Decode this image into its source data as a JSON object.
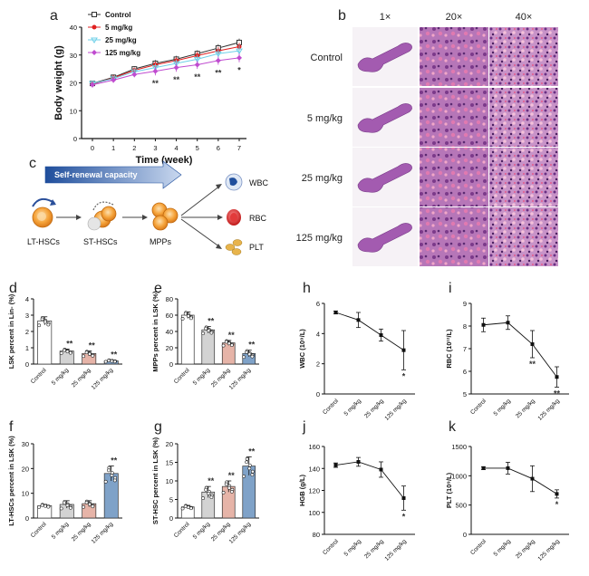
{
  "panels": {
    "a": {
      "letter": "a",
      "chart_data": {
        "type": "line",
        "xlabel": "Time (week)",
        "ylabel": "Body weight (g)",
        "x": [
          0,
          1,
          2,
          3,
          4,
          5,
          6,
          7
        ],
        "xticks": [
          "0",
          "1",
          "2",
          "3",
          "4",
          "5",
          "6",
          "7"
        ],
        "ylim": [
          0,
          40
        ],
        "yticks": [
          "0",
          "10",
          "20",
          "30",
          "40"
        ],
        "series": [
          {
            "name": "Control",
            "color": "#333333",
            "marker": "square",
            "values": [
              19.8,
              22.0,
              25.0,
              27.0,
              28.5,
              30.5,
              32.5,
              34.5
            ],
            "err": [
              1,
              1,
              1,
              1.2,
              1.2,
              1.2,
              1.4,
              1.4
            ]
          },
          {
            "name": "5 mg/kg",
            "color": "#e02020",
            "marker": "circle",
            "values": [
              19.5,
              21.8,
              24.5,
              26.5,
              28.0,
              29.8,
              31.5,
              33.0
            ],
            "err": [
              1,
              1,
              1,
              1.2,
              1.2,
              1.4,
              1.4,
              1.4
            ]
          },
          {
            "name": "25 mg/kg",
            "color": "#6fd0e8",
            "marker": "triangle-down",
            "values": [
              19.8,
              21.5,
              24.0,
              25.5,
              27.0,
              28.5,
              30.5,
              31.5
            ],
            "err": [
              1,
              1,
              1.2,
              1.4,
              1.4,
              1.6,
              1.8,
              2.2
            ]
          },
          {
            "name": "125 mg/kg",
            "color": "#c04cd0",
            "marker": "diamond",
            "values": [
              19.3,
              21.0,
              23.0,
              24.2,
              25.5,
              26.5,
              28.0,
              29.0
            ],
            "err": [
              1,
              1,
              1,
              1.5,
              1.5,
              1.5,
              1.5,
              1.6
            ]
          }
        ],
        "annotations": [
          {
            "x": 3,
            "text": "**"
          },
          {
            "x": 4,
            "text": "**"
          },
          {
            "x": 5,
            "text": "**"
          },
          {
            "x": 6,
            "text": "**"
          },
          {
            "x": 7,
            "text": "*"
          }
        ]
      }
    },
    "b": {
      "letter": "b",
      "columns": [
        "1×",
        "20×",
        "40×"
      ],
      "rows": [
        "Control",
        "5 mg/kg",
        "25 mg/kg",
        "125 mg/kg"
      ]
    },
    "c": {
      "letter": "c",
      "arrow_label": "Self-renewal capacity",
      "cells": [
        "LT-HSCs",
        "ST-HSCs",
        "MPPs"
      ],
      "outputs": [
        "WBC",
        "RBC",
        "PLT"
      ]
    },
    "d": {
      "letter": "d",
      "chart_data": {
        "type": "bar",
        "ylabel": "LSK percent in Lin- (%)",
        "ylim": [
          0,
          4
        ],
        "yticks": [
          "0",
          "1",
          "2",
          "3",
          "4"
        ],
        "categories": [
          "Control",
          "5 mg/kg",
          "25 mg/kg",
          "125 mg/kg"
        ],
        "values": [
          2.65,
          0.8,
          0.65,
          0.2
        ],
        "err": [
          0.25,
          0.12,
          0.15,
          0.05
        ],
        "colors": [
          "#ffffff",
          "#d3d3d3",
          "#e6b4a8",
          "#7fa2c8"
        ],
        "annotations": [
          "",
          "**",
          "**",
          "**"
        ]
      }
    },
    "e": {
      "letter": "e",
      "chart_data": {
        "type": "bar",
        "ylabel": "MPPs percent in LSK (%)",
        "ylim": [
          0,
          80
        ],
        "yticks": [
          "0",
          "20",
          "40",
          "60",
          "80"
        ],
        "categories": [
          "Control",
          "5 mg/kg",
          "25 mg/kg",
          "125 mg/kg"
        ],
        "values": [
          60,
          42,
          26,
          13
        ],
        "err": [
          4,
          4,
          3,
          4
        ],
        "colors": [
          "#ffffff",
          "#d3d3d3",
          "#e6b4a8",
          "#7fa2c8"
        ],
        "annotations": [
          "",
          "**",
          "**",
          "**"
        ]
      }
    },
    "f": {
      "letter": "f",
      "chart_data": {
        "type": "bar",
        "ylabel": "LT-HSCs percent in LSK (%)",
        "ylim": [
          0,
          30
        ],
        "yticks": [
          "0",
          "10",
          "20",
          "30"
        ],
        "categories": [
          "Control",
          "5 mg/kg",
          "25 mg/kg",
          "125 mg/kg"
        ],
        "values": [
          5,
          5.5,
          5.8,
          18
        ],
        "err": [
          0.5,
          1.5,
          1.2,
          3
        ],
        "colors": [
          "#ffffff",
          "#d3d3d3",
          "#e6b4a8",
          "#7fa2c8"
        ],
        "annotations": [
          "",
          "",
          "",
          "**"
        ]
      }
    },
    "g": {
      "letter": "g",
      "chart_data": {
        "type": "bar",
        "ylabel": "ST-HSC percent in LSK (%)",
        "ylim": [
          0,
          20
        ],
        "yticks": [
          "0",
          "5",
          "10",
          "15",
          "20"
        ],
        "categories": [
          "Control",
          "5 mg/kg",
          "25 mg/kg",
          "125 mg/kg"
        ],
        "values": [
          3,
          7,
          8.5,
          14
        ],
        "err": [
          0.4,
          1.5,
          1.5,
          2.5
        ],
        "colors": [
          "#ffffff",
          "#d3d3d3",
          "#e6b4a8",
          "#7fa2c8"
        ],
        "annotations": [
          "",
          "**",
          "**",
          "**"
        ]
      }
    },
    "h": {
      "letter": "h",
      "chart_data": {
        "type": "line",
        "ylabel": "WBC (10⁹/L)",
        "ylim": [
          0,
          6
        ],
        "yticks": [
          "0",
          "2",
          "4",
          "6"
        ],
        "categories": [
          "Control",
          "5 mg/kg",
          "25 mg/kg",
          "125 mg/kg"
        ],
        "values": [
          5.4,
          4.9,
          3.9,
          2.9
        ],
        "err": [
          0.1,
          0.5,
          0.4,
          1.3
        ],
        "annotations": [
          "",
          "",
          "",
          "*"
        ]
      }
    },
    "i": {
      "letter": "i",
      "chart_data": {
        "type": "line",
        "ylabel": "RBC (10¹²/L)",
        "ylim": [
          5,
          9
        ],
        "yticks": [
          "5",
          "6",
          "7",
          "8",
          "9"
        ],
        "categories": [
          "Control",
          "5 mg/kg",
          "25 mg/kg",
          "125 mg/kg"
        ],
        "values": [
          8.05,
          8.15,
          7.2,
          5.75
        ],
        "err": [
          0.3,
          0.3,
          0.6,
          0.45
        ],
        "annotations": [
          "",
          "",
          "**",
          "**"
        ]
      }
    },
    "j": {
      "letter": "j",
      "chart_data": {
        "type": "line",
        "ylabel": "HGB (g/L)",
        "ylim": [
          80,
          160
        ],
        "yticks": [
          "80",
          "100",
          "120",
          "140",
          "160"
        ],
        "categories": [
          "Control",
          "5 mg/kg",
          "25 mg/kg",
          "125 mg/kg"
        ],
        "values": [
          143,
          146,
          139,
          113
        ],
        "err": [
          2,
          4,
          7,
          11
        ],
        "annotations": [
          "",
          "",
          "",
          "*"
        ]
      }
    },
    "k": {
      "letter": "k",
      "chart_data": {
        "type": "line",
        "ylabel": "PLT (10⁹/L)",
        "ylim": [
          0,
          1500
        ],
        "yticks": [
          "0",
          "500",
          "1000",
          "1500"
        ],
        "categories": [
          "Control",
          "5 mg/kg",
          "25 mg/kg",
          "125 mg/kg"
        ],
        "values": [
          1130,
          1130,
          950,
          690
        ],
        "err": [
          25,
          100,
          220,
          70
        ],
        "annotations": [
          "",
          "",
          "",
          "*"
        ]
      }
    }
  }
}
